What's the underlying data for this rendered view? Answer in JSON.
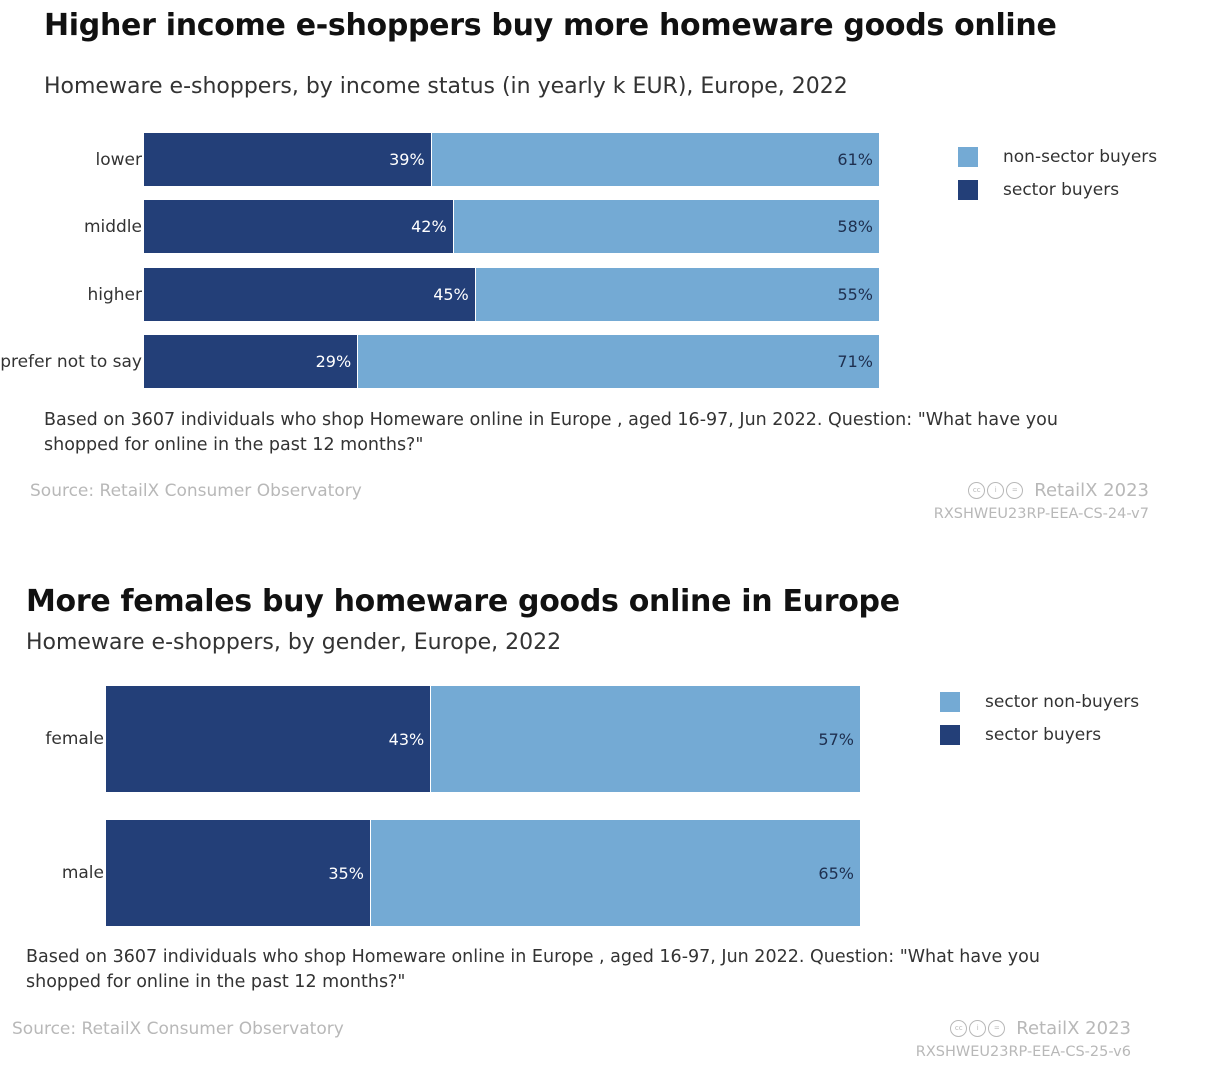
{
  "chart_data": [
    {
      "type": "bar",
      "orientation": "horizontal",
      "stacked": true,
      "title": "Higher income e-shoppers buy more homeware goods online",
      "subtitle": "Homeware e-shoppers, by income status (in yearly k EUR), Europe, 2022",
      "categories": [
        "lower",
        "middle",
        "higher",
        "prefer not to say"
      ],
      "series": [
        {
          "name": "sector buyers",
          "values": [
            39,
            42,
            45,
            29
          ],
          "labels": [
            "39%",
            "42%",
            "45%",
            "29%"
          ],
          "color": "#233f78"
        },
        {
          "name": "non-sector buyers",
          "values": [
            61,
            58,
            55,
            71
          ],
          "labels": [
            "61%",
            "58%",
            "55%",
            "71%"
          ],
          "color": "#74aad4"
        }
      ],
      "legend": [
        {
          "name": "non-sector buyers",
          "color": "#74aad4"
        },
        {
          "name": "sector buyers",
          "color": "#233f78"
        }
      ],
      "legend_position": "right",
      "xlim": [
        0,
        100
      ],
      "grid": false,
      "note": "Based on 3607 individuals who shop Homeware online in Europe , aged 16-97, Jun 2022. Question: \"What have you shopped for online in the past 12 months?\"",
      "source": "Source: RetailX Consumer Observatory",
      "brand": "RetailX 2023",
      "code": "RXSHWEU23RP-EEA-CS-24-v7"
    },
    {
      "type": "bar",
      "orientation": "horizontal",
      "stacked": true,
      "title": "More females buy homeware goods online in Europe",
      "subtitle": "Homeware e-shoppers, by gender, Europe, 2022",
      "categories": [
        "female",
        "male"
      ],
      "series": [
        {
          "name": "sector buyers",
          "values": [
            43,
            35
          ],
          "labels": [
            "43%",
            "35%"
          ],
          "color": "#233f78"
        },
        {
          "name": "sector non-buyers",
          "values": [
            57,
            65
          ],
          "labels": [
            "57%",
            "65%"
          ],
          "color": "#74aad4"
        }
      ],
      "legend": [
        {
          "name": "sector non-buyers",
          "color": "#74aad4"
        },
        {
          "name": "sector buyers",
          "color": "#233f78"
        }
      ],
      "legend_position": "right",
      "xlim": [
        0,
        100
      ],
      "grid": false,
      "note": "Based on 3607 individuals who shop Homeware online in Europe , aged 16-97, Jun 2022. Question: \"What have you shopped for online in the past 12 months?\"",
      "source": "Source: RetailX Consumer Observatory",
      "brand": "RetailX 2023",
      "code": "RXSHWEU23RP-EEA-CS-25-v6"
    }
  ]
}
